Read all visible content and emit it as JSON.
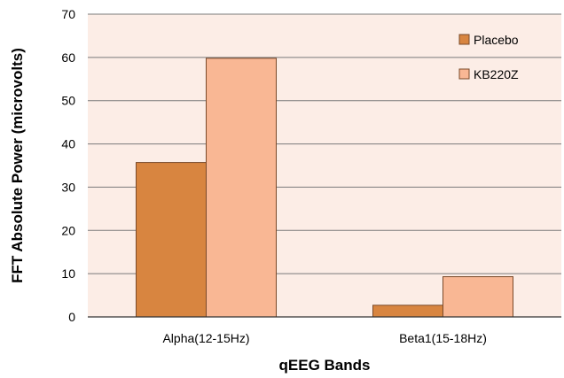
{
  "chart_data": {
    "type": "bar",
    "title": "",
    "xlabel": "qEEG Bands",
    "ylabel": "FFT Absolute Power (microvolts)",
    "categories": [
      "Alpha(12-15Hz)",
      "Beta1(15-18Hz)"
    ],
    "series": [
      {
        "name": "Placebo",
        "values": [
          35.7,
          2.7
        ],
        "color": "#d88540"
      },
      {
        "name": "KB220Z",
        "values": [
          59.8,
          9.3
        ],
        "color": "#f9b794"
      }
    ],
    "ylim": [
      0,
      70
    ],
    "yticks": [
      0,
      10,
      20,
      30,
      40,
      50,
      60,
      70
    ],
    "grid": true,
    "legend_position": "top-right",
    "plot_background": "#fcede6",
    "grid_color": "#7a7a7a",
    "bar_edge_color": "#7a4a2a"
  }
}
